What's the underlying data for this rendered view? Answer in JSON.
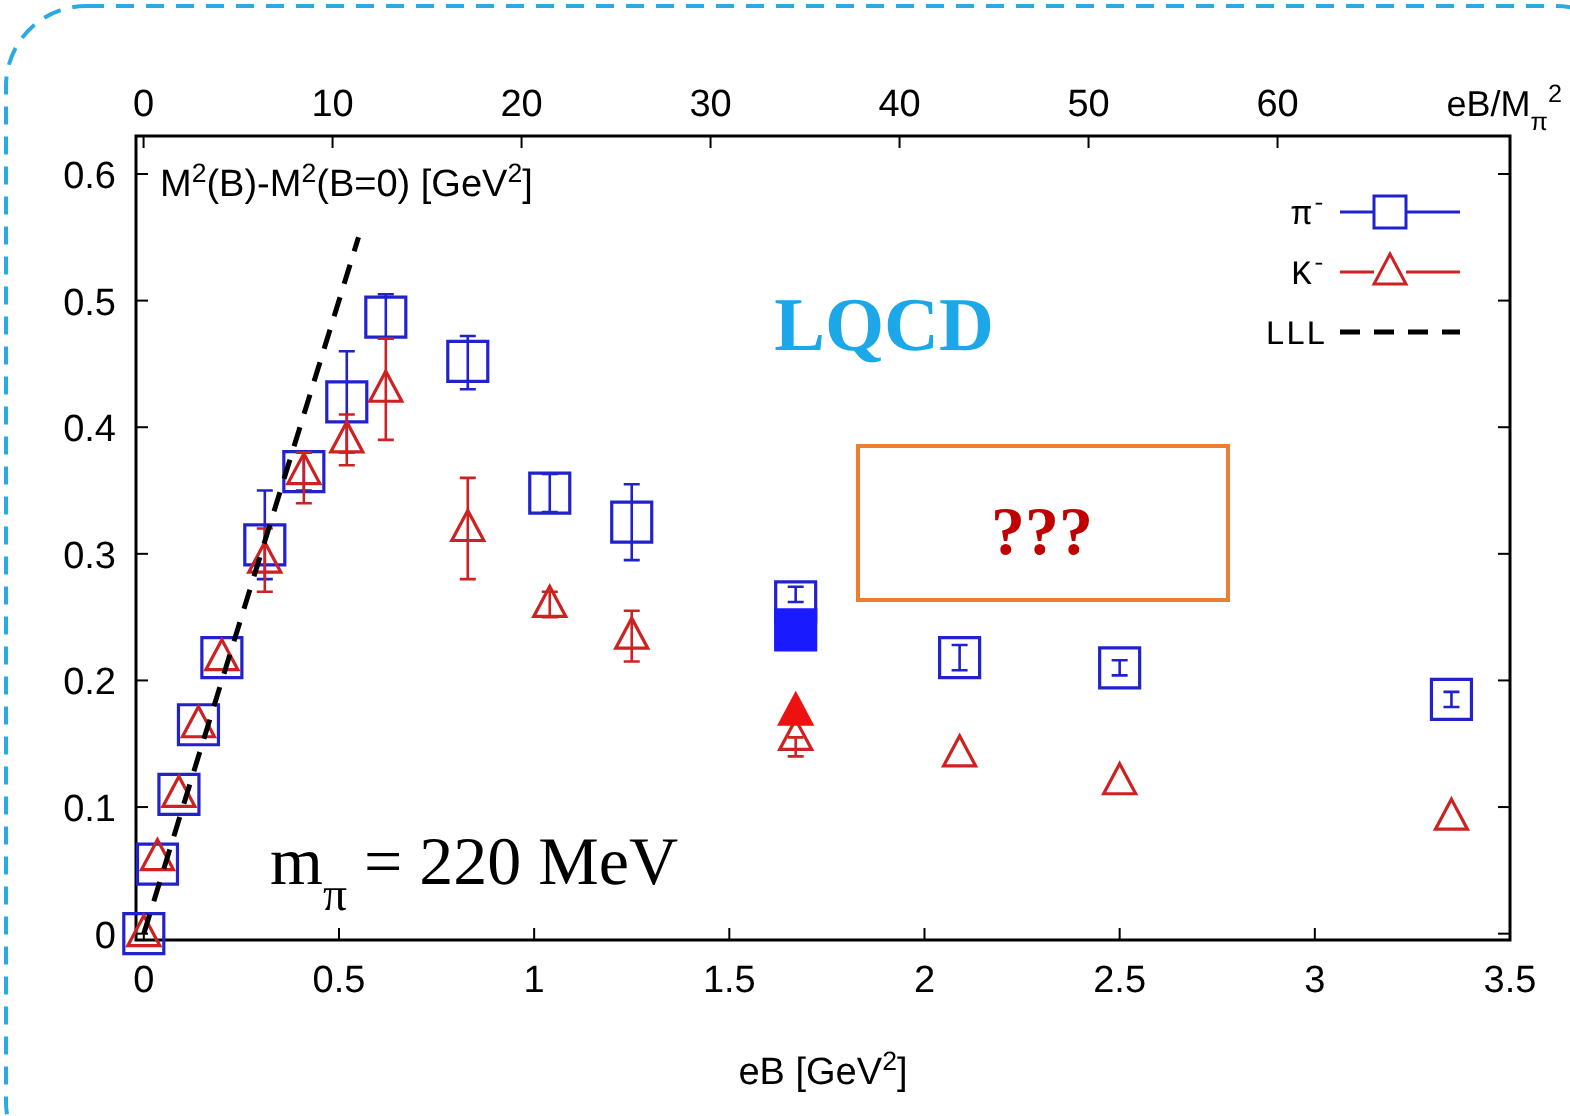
{
  "chart_data": {
    "type": "scatter",
    "xlabel": "eB [GeV$^{2}$]",
    "ylabel": "M$^{2}$(B)-M$^{2}$(B=0) [GeV$^{2}$]",
    "x2label": "eB/M$_{π}$$^{2}$",
    "xlim": [
      -0.02,
      3.5
    ],
    "xticks": [
      0,
      0.5,
      1,
      1.5,
      2,
      2.5,
      3,
      3.5
    ],
    "x2lim": [
      -0.4,
      72.3
    ],
    "x2ticks": [
      0,
      10,
      20,
      30,
      40,
      50,
      60
    ],
    "ylim": [
      -0.005,
      0.63
    ],
    "yticks": [
      0,
      0.1,
      0.2,
      0.3,
      0.4,
      0.5,
      0.6
    ],
    "legend": "top right",
    "grid": false,
    "annotations": [
      "LQCD",
      "???",
      "m$_{π}$ = 220 MeV"
    ],
    "series": [
      {
        "name": "π$^{-}$",
        "color": "#2222cc",
        "marker": "square",
        "x": [
          0,
          0.035,
          0.09,
          0.14,
          0.2,
          0.31,
          0.41,
          0.52,
          0.62,
          0.83,
          1.04,
          1.25,
          1.67,
          2.09,
          2.5,
          3.35
        ],
        "values": [
          0,
          0.055,
          0.11,
          0.165,
          0.218,
          0.307,
          0.365,
          0.42,
          0.487,
          0.452,
          0.348,
          0.325,
          0.262,
          0.218,
          0.21,
          0.185
        ],
        "errors": [
          null,
          null,
          null,
          null,
          null,
          [
            0.28,
            0.35
          ],
          [
            0.35,
            0.38
          ],
          [
            0.38,
            0.46
          ],
          [
            0.47,
            0.505
          ],
          [
            0.43,
            0.472
          ],
          [
            0.333,
            0.363
          ],
          [
            0.295,
            0.355
          ],
          [
            0.262,
            0.274
          ],
          [
            0.208,
            0.228
          ],
          [
            0.204,
            0.216
          ],
          [
            0.179,
            0.191
          ]
        ]
      },
      {
        "name": "K$^{-}$",
        "color": "#cc2222",
        "marker": "triangle",
        "x": [
          0,
          0.035,
          0.09,
          0.14,
          0.2,
          0.31,
          0.41,
          0.52,
          0.62,
          0.83,
          1.04,
          1.25,
          1.67,
          2.09,
          2.5,
          3.35
        ],
        "values": [
          0,
          0.06,
          0.11,
          0.165,
          0.218,
          0.295,
          0.365,
          0.39,
          0.43,
          0.32,
          0.26,
          0.235,
          0.155,
          0.142,
          0.12,
          0.092
        ],
        "errors": [
          null,
          null,
          null,
          null,
          null,
          [
            0.27,
            0.32
          ],
          [
            0.34,
            0.38
          ],
          [
            0.37,
            0.41
          ],
          [
            0.39,
            0.47
          ],
          [
            0.28,
            0.36
          ],
          [
            0.25,
            0.27
          ],
          [
            0.215,
            0.255
          ],
          [
            0.14,
            0.155
          ],
          null,
          null,
          null
        ]
      },
      {
        "name": "LLL",
        "type": "line",
        "color": "#000000",
        "line_style": "dashed",
        "marker": "none",
        "x": [
          0,
          0.55
        ],
        "values": [
          0,
          0.55
        ]
      },
      {
        "color": "#1a1aff",
        "marker": "square",
        "x": [
          1.67
        ],
        "values": [
          0.24
        ]
      },
      {
        "color": "#ee1111",
        "marker": "triangle",
        "x": [
          1.67
        ],
        "values": [
          0.175
        ]
      }
    ]
  }
}
